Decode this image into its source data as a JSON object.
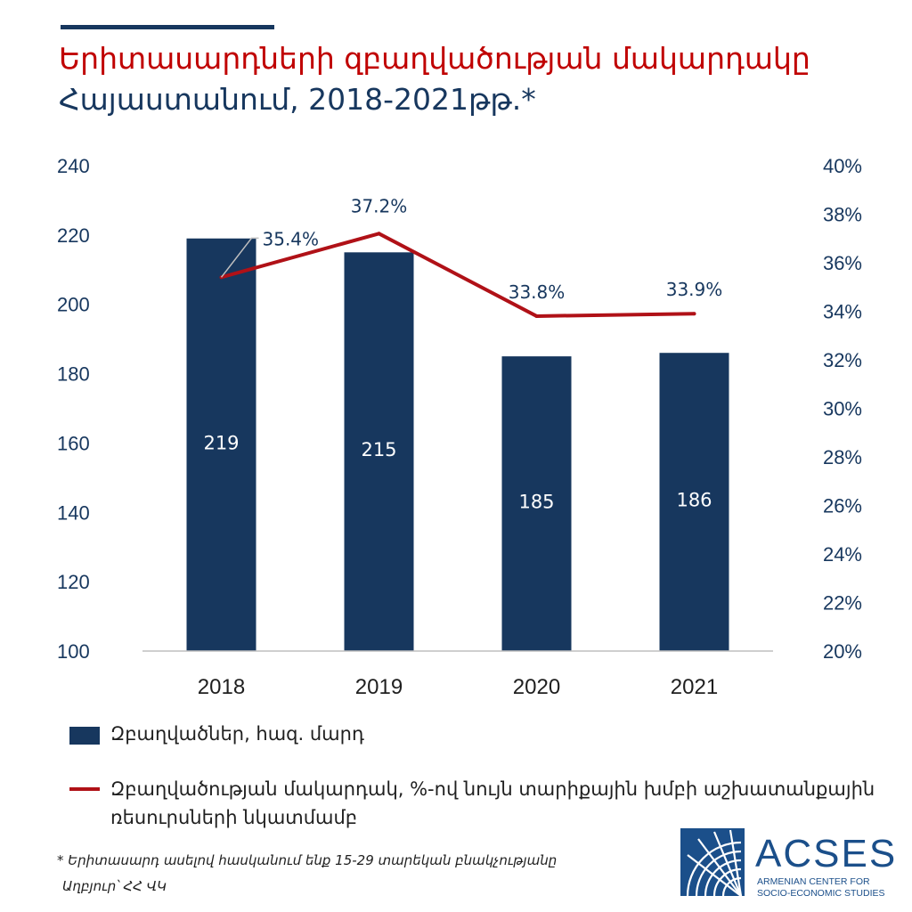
{
  "title": "Երիտասարդների զբաղվածության մակարդակը",
  "subtitle": "Հայաստանում, 2018-2021թթ.*",
  "chart_data": {
    "type": "bar+line",
    "categories": [
      "2018",
      "2019",
      "2020",
      "2021"
    ],
    "series": [
      {
        "name": "Զբաղվածներ, հազ. մարդ",
        "type": "bar",
        "axis": "left",
        "values": [
          219,
          215,
          185,
          186
        ],
        "labels": [
          "219",
          "215",
          "185",
          "186"
        ],
        "color": "#17375e"
      },
      {
        "name": "Զբաղվածության մակարդակ, %-ով նույն տարիքային խմբի աշխատանքային ռեսուրսների նկատմամբ",
        "type": "line",
        "axis": "right",
        "values": [
          35.4,
          37.2,
          33.8,
          33.9
        ],
        "labels": [
          "35.4%",
          "37.2%",
          "33.8%",
          "33.9%"
        ],
        "color": "#b01117"
      }
    ],
    "left_axis": {
      "ylim": [
        100,
        240
      ],
      "ticks": [
        "100",
        "120",
        "140",
        "160",
        "180",
        "200",
        "220",
        "240"
      ]
    },
    "right_axis": {
      "ylim": [
        20,
        40
      ],
      "ticks": [
        "20%",
        "22%",
        "24%",
        "26%",
        "28%",
        "30%",
        "32%",
        "34%",
        "36%",
        "38%",
        "40%"
      ]
    },
    "grid": false,
    "legend_position": "bottom"
  },
  "footnote": "* Երիտասարդ ասելով հասկանում ենք 15-29 տարեկան բնակչությանը",
  "source": "Աղբյուր՝ ՀՀ ՎԿ",
  "logo": {
    "name": "ACSES",
    "line1": "ARMENIAN CENTER FOR",
    "line2": "SOCIO-ECONOMIC STUDIES",
    "color": "#1b4f8a"
  }
}
